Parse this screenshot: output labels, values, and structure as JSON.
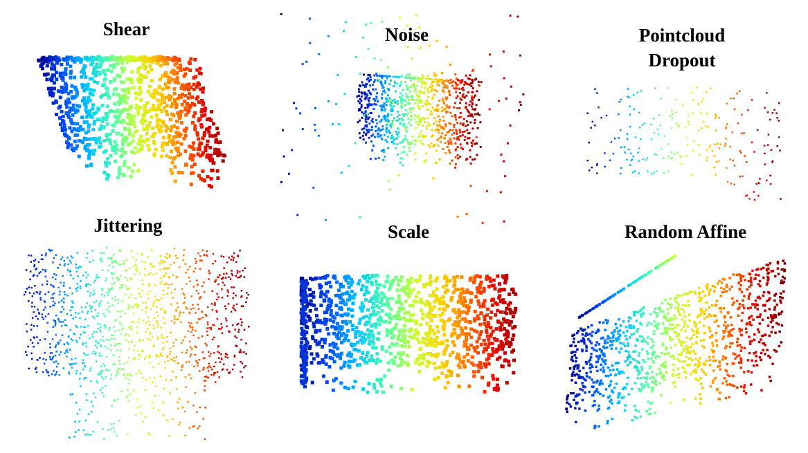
{
  "panels": [
    {
      "id": "shear",
      "title": "Shear",
      "style": "boxy",
      "point_size": "large"
    },
    {
      "id": "noise",
      "title": "Noise",
      "style": "boxy-with-outliers",
      "point_size": "small"
    },
    {
      "id": "dropout",
      "title_lines": [
        "Pointcloud",
        "Dropout"
      ],
      "style": "sparse",
      "point_size": "small"
    },
    {
      "id": "jittering",
      "title": "Jittering",
      "style": "jittered",
      "point_size": "small"
    },
    {
      "id": "scale",
      "title": "Scale",
      "style": "boxy-wide",
      "point_size": "large"
    },
    {
      "id": "random_affine",
      "title": "Random Affine",
      "style": "skewed",
      "point_size": "medium"
    }
  ],
  "colormap": [
    "#00008f",
    "#0050ff",
    "#00c8ff",
    "#50ffaa",
    "#c8ff32",
    "#ffd200",
    "#ff6400",
    "#dc0000",
    "#800000"
  ]
}
